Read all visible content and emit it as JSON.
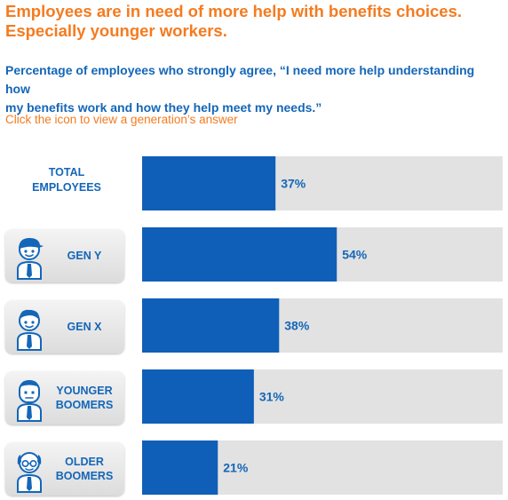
{
  "headline": {
    "line1": "Employees are in need of more help with benefits choices.",
    "line2": "Especially younger workers."
  },
  "subhead": {
    "line1": "Percentage of employees who strongly agree, “I need more help understanding how",
    "line2": "my benefits work and how they help meet my needs.”"
  },
  "instruction": "Click the icon to view a generation’s answer",
  "rows": [
    {
      "label_line1": "TOTAL",
      "label_line2": "EMPLOYEES",
      "icon": "none",
      "value_label": "37%"
    },
    {
      "label_line1": "GEN Y",
      "label_line2": "",
      "icon": "gen-y-person-icon",
      "value_label": "54%"
    },
    {
      "label_line1": "GEN X",
      "label_line2": "",
      "icon": "gen-x-person-icon",
      "value_label": "38%"
    },
    {
      "label_line1": "YOUNGER",
      "label_line2": "BOOMERS",
      "icon": "younger-boomer-person-icon",
      "value_label": "31%"
    },
    {
      "label_line1": "OLDER",
      "label_line2": "BOOMERS",
      "icon": "older-boomer-person-icon",
      "value_label": "21%"
    }
  ],
  "colors": {
    "headline": "#f47b20",
    "text_blue": "#1466b8",
    "bar": "#0f5fb8",
    "track": "#e2e2e2"
  },
  "chart_data": {
    "type": "bar",
    "orientation": "horizontal",
    "categories": [
      "TOTAL EMPLOYEES",
      "GEN Y",
      "GEN X",
      "YOUNGER BOOMERS",
      "OLDER BOOMERS"
    ],
    "values": [
      37,
      54,
      38,
      31,
      21
    ],
    "unit": "%",
    "xlim": [
      0,
      100
    ],
    "grid": false,
    "legend": "none"
  }
}
